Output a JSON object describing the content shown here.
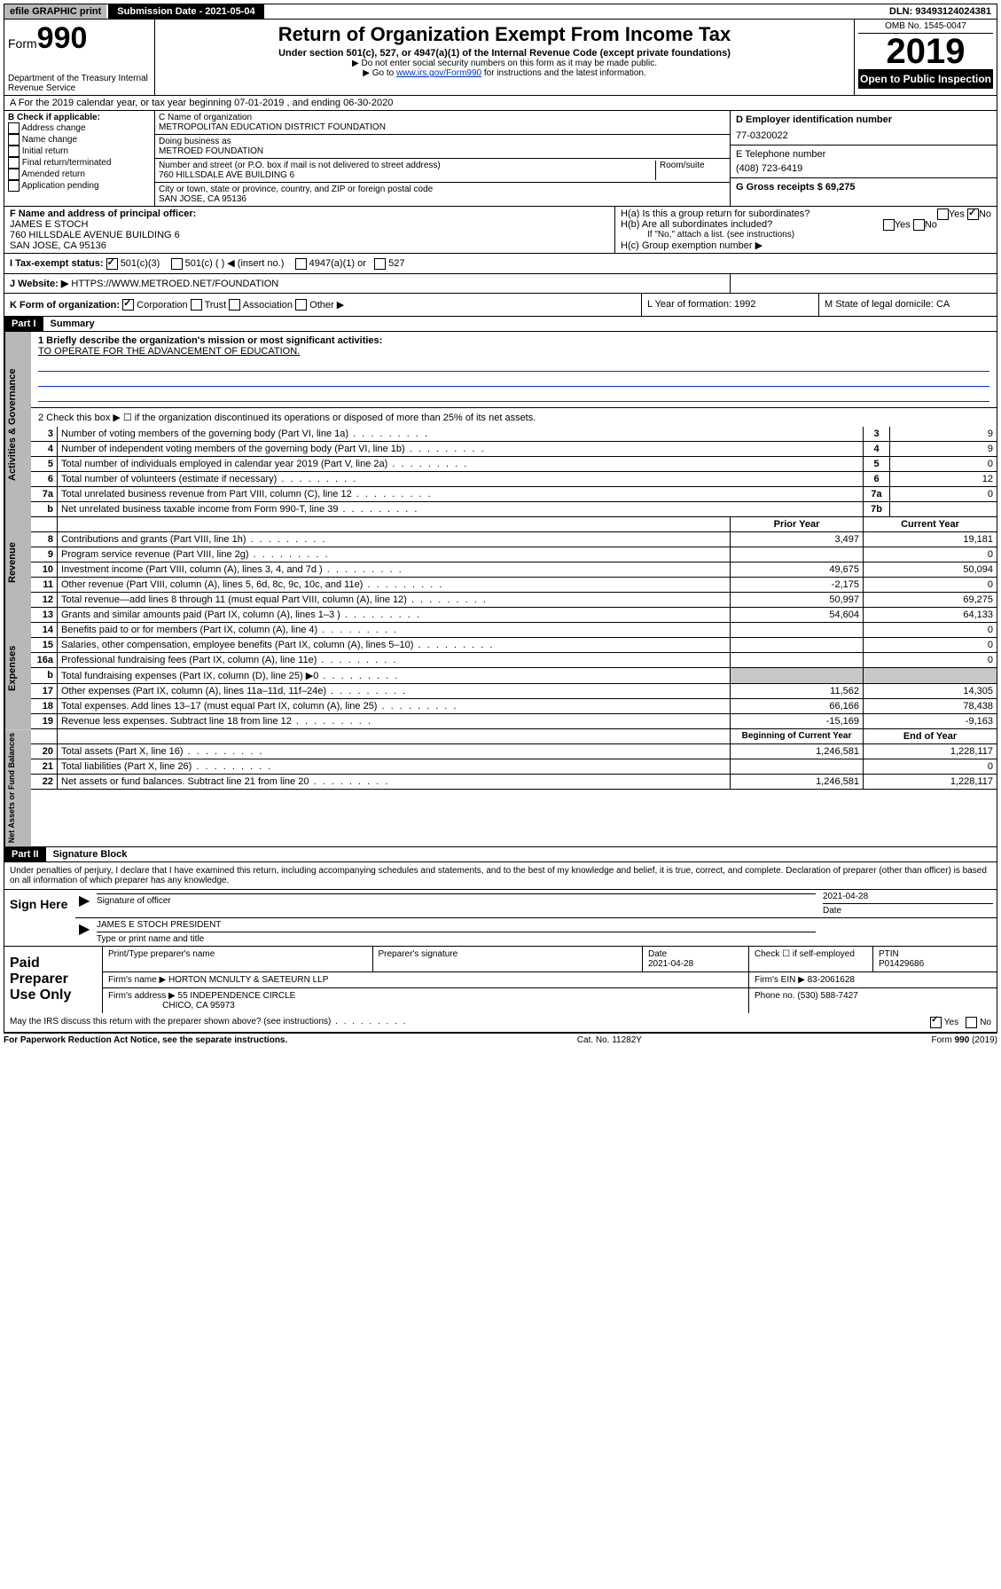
{
  "topbar": {
    "efile": "efile GRAPHIC print",
    "subdate_label": "Submission Date - 2021-05-04",
    "dln": "DLN: 93493124024381"
  },
  "header": {
    "form_word": "Form",
    "form_num": "990",
    "dept": "Department of the Treasury Internal Revenue Service",
    "title": "Return of Organization Exempt From Income Tax",
    "subtitle": "Under section 501(c), 527, or 4947(a)(1) of the Internal Revenue Code (except private foundations)",
    "note1": "▶ Do not enter social security numbers on this form as it may be made public.",
    "note2_pre": "▶ Go to ",
    "note2_link": "www.irs.gov/Form990",
    "note2_post": " for instructions and the latest information.",
    "omb": "OMB No. 1545-0047",
    "year": "2019",
    "otp": "Open to Public Inspection"
  },
  "period": "A For the 2019 calendar year, or tax year beginning 07-01-2019    , and ending 06-30-2020",
  "checkB": {
    "label": "B Check if applicable:",
    "items": [
      "Address change",
      "Name change",
      "Initial return",
      "Final return/terminated",
      "Amended return",
      "Application pending"
    ]
  },
  "org": {
    "name_label": "C Name of organization",
    "name": "METROPOLITAN EDUCATION DISTRICT FOUNDATION",
    "dba_label": "Doing business as",
    "dba": "METROED FOUNDATION",
    "addr_label": "Number and street (or P.O. box if mail is not delivered to street address)",
    "room_label": "Room/suite",
    "addr": "760 HILLSDALE AVE BUILDING 6",
    "city_label": "City or town, state or province, country, and ZIP or foreign postal code",
    "city": "SAN JOSE, CA  95136"
  },
  "right": {
    "ein_label": "D Employer identification number",
    "ein": "77-0320022",
    "phone_label": "E Telephone number",
    "phone": "(408) 723-6419",
    "gross_label": "G Gross receipts $ 69,275"
  },
  "principal": {
    "label": "F  Name and address of principal officer:",
    "name": "JAMES E STOCH",
    "addr": "760 HILLSDALE AVENUE BUILDING 6",
    "city": "SAN JOSE, CA  95136"
  },
  "H": {
    "a": "H(a)  Is this a group return for subordinates?",
    "b": "H(b)  Are all subordinates included?",
    "b_note": "If \"No,\" attach a list. (see instructions)",
    "c": "H(c)  Group exemption number ▶",
    "yes": "Yes",
    "no": "No"
  },
  "tax_status": {
    "label": "I    Tax-exempt status:",
    "opt1": "501(c)(3)",
    "opt2": "501(c) (  ) ◀ (insert no.)",
    "opt3": "4947(a)(1) or",
    "opt4": "527"
  },
  "website": {
    "label": "J   Website: ▶",
    "value": "  HTTPS://WWW.METROED.NET/FOUNDATION"
  },
  "K": {
    "label": "K Form of organization:",
    "corp": "Corporation",
    "trust": "Trust",
    "assoc": "Association",
    "other": "Other ▶"
  },
  "L": "L Year of formation: 1992",
  "M": "M State of legal domicile: CA",
  "part1": {
    "header": "Part I",
    "title": "Summary",
    "q1": "1  Briefly describe the organization's mission or most significant activities:",
    "q1_ans": "TO OPERATE FOR THE ADVANCEMENT OF EDUCATION.",
    "q2": "2    Check this box ▶ ☐  if the organization discontinued its operations or disposed of more than 25% of its net assets.",
    "lines": [
      {
        "n": "3",
        "t": "Number of voting members of the governing body (Part VI, line 1a)",
        "lbl": "3",
        "v": "9"
      },
      {
        "n": "4",
        "t": "Number of independent voting members of the governing body (Part VI, line 1b)",
        "lbl": "4",
        "v": "9"
      },
      {
        "n": "5",
        "t": "Total number of individuals employed in calendar year 2019 (Part V, line 2a)",
        "lbl": "5",
        "v": "0"
      },
      {
        "n": "6",
        "t": "Total number of volunteers (estimate if necessary)",
        "lbl": "6",
        "v": "12"
      },
      {
        "n": "7a",
        "t": "Total unrelated business revenue from Part VIII, column (C), line 12",
        "lbl": "7a",
        "v": "0"
      },
      {
        "n": "b",
        "t": "Net unrelated business taxable income from Form 990-T, line 39",
        "lbl": "7b",
        "v": ""
      }
    ]
  },
  "revenue": {
    "tab": "Revenue",
    "prior": "Prior Year",
    "current": "Current Year",
    "rows": [
      {
        "n": "8",
        "t": "Contributions and grants (Part VIII, line 1h)",
        "p": "3,497",
        "c": "19,181"
      },
      {
        "n": "9",
        "t": "Program service revenue (Part VIII, line 2g)",
        "p": "",
        "c": "0"
      },
      {
        "n": "10",
        "t": "Investment income (Part VIII, column (A), lines 3, 4, and 7d )",
        "p": "49,675",
        "c": "50,094"
      },
      {
        "n": "11",
        "t": "Other revenue (Part VIII, column (A), lines 5, 6d, 8c, 9c, 10c, and 11e)",
        "p": "-2,175",
        "c": "0"
      },
      {
        "n": "12",
        "t": "Total revenue—add lines 8 through 11 (must equal Part VIII, column (A), line 12)",
        "p": "50,997",
        "c": "69,275"
      }
    ]
  },
  "expenses": {
    "tab": "Expenses",
    "rows": [
      {
        "n": "13",
        "t": "Grants and similar amounts paid (Part IX, column (A), lines 1–3 )",
        "p": "54,604",
        "c": "64,133"
      },
      {
        "n": "14",
        "t": "Benefits paid to or for members (Part IX, column (A), line 4)",
        "p": "",
        "c": "0"
      },
      {
        "n": "15",
        "t": "Salaries, other compensation, employee benefits (Part IX, column (A), lines 5–10)",
        "p": "",
        "c": "0"
      },
      {
        "n": "16a",
        "t": "Professional fundraising fees (Part IX, column (A), line 11e)",
        "p": "",
        "c": "0"
      },
      {
        "n": "b",
        "t": "Total fundraising expenses (Part IX, column (D), line 25) ▶0",
        "p": "SHADE",
        "c": "SHADE"
      },
      {
        "n": "17",
        "t": "Other expenses (Part IX, column (A), lines 11a–11d, 11f–24e)",
        "p": "11,562",
        "c": "14,305"
      },
      {
        "n": "18",
        "t": "Total expenses. Add lines 13–17 (must equal Part IX, column (A), line 25)",
        "p": "66,166",
        "c": "78,438"
      },
      {
        "n": "19",
        "t": "Revenue less expenses. Subtract line 18 from line 12",
        "p": "-15,169",
        "c": "-9,163"
      }
    ]
  },
  "netassets": {
    "tab": "Net Assets or Fund Balances",
    "begin": "Beginning of Current Year",
    "end": "End of Year",
    "rows": [
      {
        "n": "20",
        "t": "Total assets (Part X, line 16)",
        "p": "1,246,581",
        "c": "1,228,117"
      },
      {
        "n": "21",
        "t": "Total liabilities (Part X, line 26)",
        "p": "",
        "c": "0"
      },
      {
        "n": "22",
        "t": "Net assets or fund balances. Subtract line 21 from line 20",
        "p": "1,246,581",
        "c": "1,228,117"
      }
    ]
  },
  "part2": {
    "header": "Part II",
    "title": "Signature Block",
    "decl": "Under penalties of perjury, I declare that I have examined this return, including accompanying schedules and statements, and to the best of my knowledge and belief, it is true, correct, and complete. Declaration of preparer (other than officer) is based on all information of which preparer has any knowledge."
  },
  "sign": {
    "label": "Sign Here",
    "sig_officer": "Signature of officer",
    "date": "2021-04-28",
    "date_label": "Date",
    "name": "JAMES E STOCH PRESIDENT",
    "name_label": "Type or print name and title"
  },
  "paid": {
    "label": "Paid Preparer Use Only",
    "h_name": "Print/Type preparer's name",
    "h_sig": "Preparer's signature",
    "h_date": "Date",
    "date": "2021-04-28",
    "check_label": "Check ☐ if self-employed",
    "ptin_label": "PTIN",
    "ptin": "P01429686",
    "firm_label": "Firm's name      ▶",
    "firm": "HORTON MCNULTY & SAETEURN LLP",
    "ein_label": "Firm's EIN ▶",
    "ein": "83-2061628",
    "addr_label": "Firm's address ▶",
    "addr": "55 INDEPENDENCE CIRCLE",
    "city": "CHICO, CA  95973",
    "phone_label": "Phone no.",
    "phone": "(530) 588-7427"
  },
  "discuss": "May the IRS discuss this return with the preparer shown above? (see instructions)",
  "footer": {
    "left": "For Paperwork Reduction Act Notice, see the separate instructions.",
    "mid": "Cat. No. 11282Y",
    "right": "Form 990 (2019)"
  },
  "gov_tab": "Activities & Governance"
}
